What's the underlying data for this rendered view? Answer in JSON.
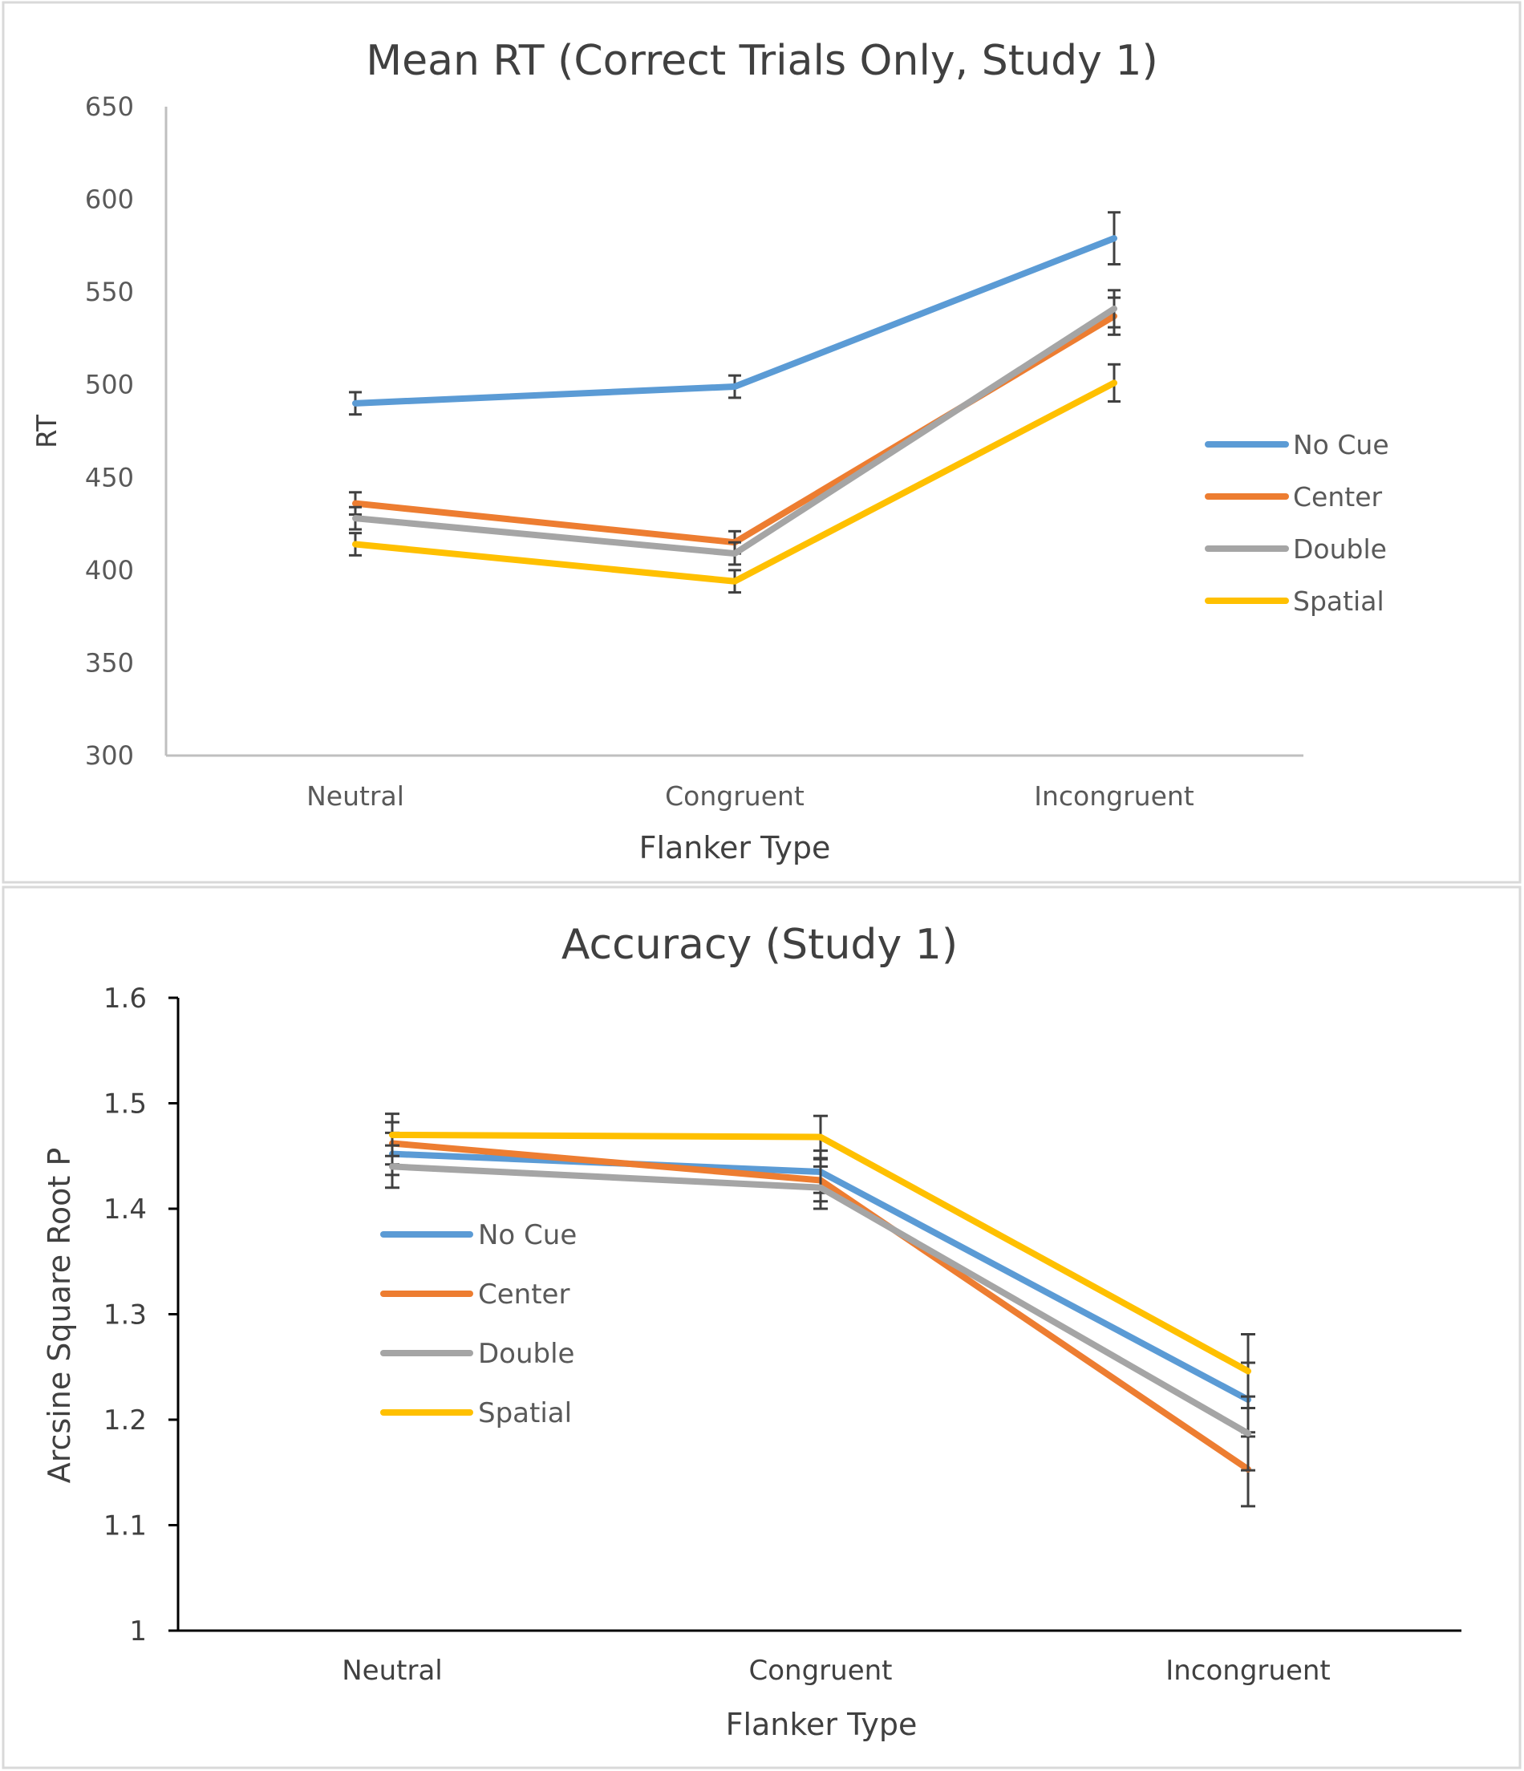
{
  "chart_data": [
    {
      "type": "line",
      "title": "Mean RT (Correct Trials Only, Study 1)",
      "xlabel": "Flanker Type",
      "ylabel": "RT",
      "categories": [
        "Neutral",
        "Congruent",
        "Incongruent"
      ],
      "ylim": [
        300,
        650
      ],
      "yticks": [
        300,
        350,
        400,
        450,
        500,
        550,
        600,
        650
      ],
      "legend_position": "right",
      "series": [
        {
          "name": "No Cue",
          "color": "#5B9BD5",
          "values": [
            490,
            499,
            579
          ],
          "errors": [
            6,
            6,
            14
          ]
        },
        {
          "name": "Center",
          "color": "#ED7D31",
          "values": [
            436,
            415,
            537
          ],
          "errors": [
            6,
            6,
            10
          ]
        },
        {
          "name": "Double",
          "color": "#A5A5A5",
          "values": [
            428,
            409,
            541
          ],
          "errors": [
            6,
            6,
            10
          ]
        },
        {
          "name": "Spatial",
          "color": "#FFC000",
          "values": [
            414,
            394,
            501
          ],
          "errors": [
            6,
            6,
            10
          ]
        }
      ]
    },
    {
      "type": "line",
      "title": "Accuracy (Study 1)",
      "xlabel": "Flanker Type",
      "ylabel": "Arcsine Square Root P",
      "categories": [
        "Neutral",
        "Congruent",
        "Incongruent"
      ],
      "ylim": [
        1,
        1.6
      ],
      "yticks": [
        "1",
        "1.1",
        "1.2",
        "1.3",
        "1.4",
        "1.5",
        "1.6"
      ],
      "legend_position": "left",
      "series": [
        {
          "name": "No Cue",
          "color": "#5B9BD5",
          "values": [
            1.452,
            1.435,
            1.219
          ],
          "errors": [
            0.02,
            0.02,
            0.035
          ]
        },
        {
          "name": "Center",
          "color": "#ED7D31",
          "values": [
            1.462,
            1.427,
            1.153
          ],
          "errors": [
            0.02,
            0.02,
            0.035
          ]
        },
        {
          "name": "Double",
          "color": "#A5A5A5",
          "values": [
            1.44,
            1.42,
            1.187
          ],
          "errors": [
            0.02,
            0.02,
            0.035
          ]
        },
        {
          "name": "Spatial",
          "color": "#FFC000",
          "values": [
            1.47,
            1.468,
            1.246
          ],
          "errors": [
            0.02,
            0.02,
            0.035
          ]
        }
      ]
    }
  ]
}
